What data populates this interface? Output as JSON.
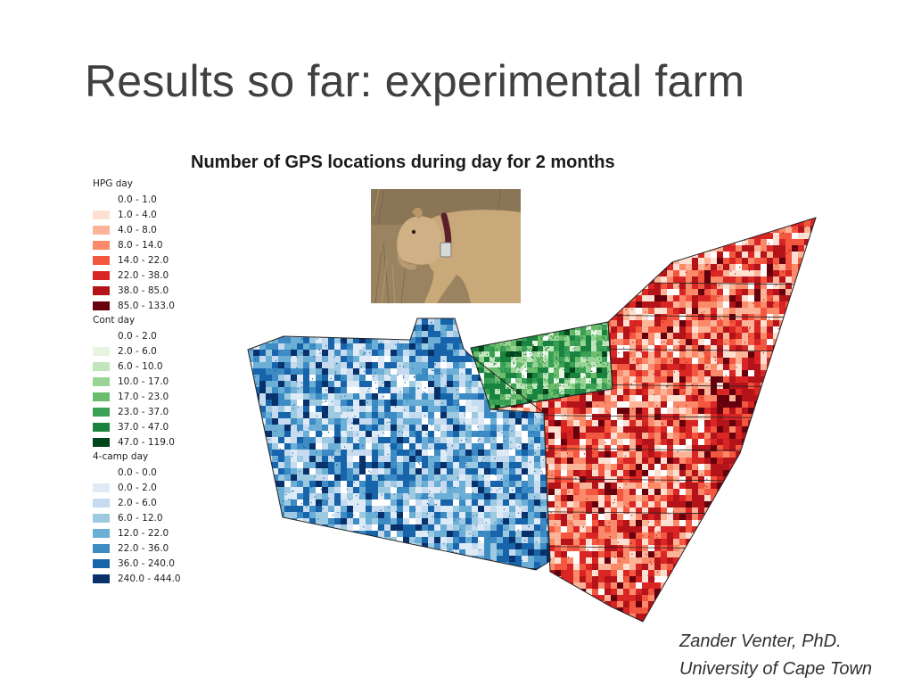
{
  "slide": {
    "title": "Results so far: experimental farm"
  },
  "map": {
    "title": "Number of GPS locations during day for 2 months",
    "legend": [
      {
        "title": "HPG day",
        "color_ramp": "red",
        "classes": [
          {
            "label": "0.0 - 1.0",
            "color": "#ffffff"
          },
          {
            "label": "1.0 - 4.0",
            "color": "#fde0d2"
          },
          {
            "label": "4.0 - 8.0",
            "color": "#fcb499"
          },
          {
            "label": "8.0 - 14.0",
            "color": "#fb8a6a"
          },
          {
            "label": "14.0 - 22.0",
            "color": "#f4573f"
          },
          {
            "label": "22.0 - 38.0",
            "color": "#d92523"
          },
          {
            "label": "38.0 - 85.0",
            "color": "#b31319"
          },
          {
            "label": "85.0 - 133.0",
            "color": "#67000d"
          }
        ]
      },
      {
        "title": "Cont day",
        "color_ramp": "green",
        "classes": [
          {
            "label": "0.0 - 2.0",
            "color": "#ffffff"
          },
          {
            "label": "2.0 - 6.0",
            "color": "#e5f5e0"
          },
          {
            "label": "6.0 - 10.0",
            "color": "#c1e6bb"
          },
          {
            "label": "10.0 - 17.0",
            "color": "#98d594"
          },
          {
            "label": "17.0 - 23.0",
            "color": "#6abd6c"
          },
          {
            "label": "23.0 - 37.0",
            "color": "#3aa157"
          },
          {
            "label": "37.0 - 47.0",
            "color": "#19833f"
          },
          {
            "label": "47.0 - 119.0",
            "color": "#00441b"
          }
        ]
      },
      {
        "title": "4-camp day",
        "color_ramp": "blue",
        "classes": [
          {
            "label": "0.0 - 0.0",
            "color": "#ffffff"
          },
          {
            "label": "0.0 - 2.0",
            "color": "#deebf7"
          },
          {
            "label": "2.0 - 6.0",
            "color": "#c6dbef"
          },
          {
            "label": "6.0 - 12.0",
            "color": "#9ecae1"
          },
          {
            "label": "12.0 - 22.0",
            "color": "#6baed6"
          },
          {
            "label": "22.0 - 36.0",
            "color": "#3d8bc4"
          },
          {
            "label": "36.0 - 240.0",
            "color": "#1764aa"
          },
          {
            "label": "240.0 - 444.0",
            "color": "#08306b"
          }
        ]
      }
    ],
    "layers": [
      {
        "legend_group": "4-camp day",
        "dominant_color": "#6baed6"
      },
      {
        "legend_group": "Cont day",
        "dominant_color": "#3aa157"
      },
      {
        "legend_group": "HPG day",
        "dominant_color": "#f4573f"
      }
    ],
    "inset_photo": "cow-with-gps-collar"
  },
  "credit": {
    "line1": "Zander Venter, PhD.",
    "line2": "University of Cape Town"
  }
}
